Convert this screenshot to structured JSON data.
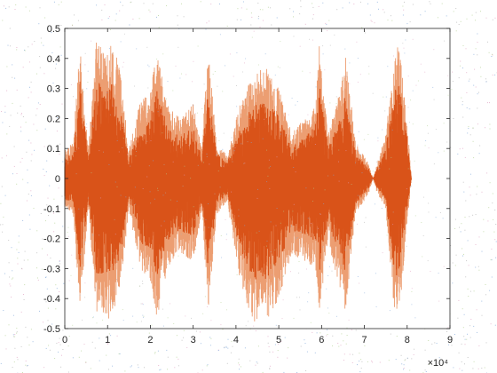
{
  "chart_data": {
    "type": "line",
    "title": "",
    "xlabel": "",
    "ylabel": "",
    "xlim": [
      0,
      9
    ],
    "ylim": [
      -0.5,
      0.5
    ],
    "x_ticks": [
      0,
      1,
      2,
      3,
      4,
      5,
      6,
      7,
      8,
      9
    ],
    "y_ticks": [
      -0.5,
      -0.4,
      -0.3,
      -0.2,
      -0.1,
      0,
      0.1,
      0.2,
      0.3,
      0.4,
      0.5
    ],
    "x_tick_labels": [
      "0",
      "1",
      "2",
      "3",
      "4",
      "5",
      "6",
      "7",
      "8",
      "9"
    ],
    "y_tick_labels": [
      "-0.5",
      "-0.4",
      "-0.3",
      "-0.2",
      "-0.1",
      "0",
      "0.1",
      "0.2",
      "0.3",
      "0.4",
      "0.5"
    ],
    "x_exponent_label": "×10⁴",
    "grid": false,
    "box": true,
    "colors": {
      "series_dark": "#d95319",
      "series_light": "#ec9e72",
      "axes": "#262626",
      "noise": [
        "#b0b0b0",
        "#7fa7d8",
        "#e0a0c0",
        "#b0d090"
      ]
    },
    "series": [
      {
        "type": "waveform",
        "amplitude_envelope": [
          {
            "x": 0.0,
            "top": 0.1,
            "bottom": -0.1
          },
          {
            "x": 0.2,
            "top": 0.12,
            "bottom": -0.12
          },
          {
            "x": 0.35,
            "top": 0.47,
            "bottom": -0.45
          },
          {
            "x": 0.55,
            "top": 0.1,
            "bottom": -0.1
          },
          {
            "x": 0.75,
            "top": 0.48,
            "bottom": -0.48
          },
          {
            "x": 0.95,
            "top": 0.4,
            "bottom": -0.48
          },
          {
            "x": 1.1,
            "top": 0.47,
            "bottom": -0.47
          },
          {
            "x": 1.3,
            "top": 0.35,
            "bottom": -0.37
          },
          {
            "x": 1.5,
            "top": 0.1,
            "bottom": -0.1
          },
          {
            "x": 1.75,
            "top": 0.25,
            "bottom": -0.3
          },
          {
            "x": 2.0,
            "top": 0.3,
            "bottom": -0.35
          },
          {
            "x": 2.15,
            "top": 0.42,
            "bottom": -0.47
          },
          {
            "x": 2.4,
            "top": 0.25,
            "bottom": -0.3
          },
          {
            "x": 2.7,
            "top": 0.2,
            "bottom": -0.25
          },
          {
            "x": 3.0,
            "top": 0.25,
            "bottom": -0.28
          },
          {
            "x": 3.2,
            "top": 0.1,
            "bottom": -0.12
          },
          {
            "x": 3.35,
            "top": 0.45,
            "bottom": -0.45
          },
          {
            "x": 3.55,
            "top": 0.12,
            "bottom": -0.12
          },
          {
            "x": 3.8,
            "top": 0.08,
            "bottom": -0.08
          },
          {
            "x": 4.1,
            "top": 0.25,
            "bottom": -0.35
          },
          {
            "x": 4.4,
            "top": 0.35,
            "bottom": -0.48
          },
          {
            "x": 4.7,
            "top": 0.37,
            "bottom": -0.48
          },
          {
            "x": 5.0,
            "top": 0.3,
            "bottom": -0.4
          },
          {
            "x": 5.3,
            "top": 0.15,
            "bottom": -0.25
          },
          {
            "x": 5.6,
            "top": 0.2,
            "bottom": -0.28
          },
          {
            "x": 5.85,
            "top": 0.25,
            "bottom": -0.3
          },
          {
            "x": 5.95,
            "top": 0.45,
            "bottom": -0.45
          },
          {
            "x": 6.15,
            "top": 0.15,
            "bottom": -0.2
          },
          {
            "x": 6.45,
            "top": 0.3,
            "bottom": -0.4
          },
          {
            "x": 6.55,
            "top": 0.42,
            "bottom": -0.45
          },
          {
            "x": 6.8,
            "top": 0.12,
            "bottom": -0.12
          },
          {
            "x": 7.1,
            "top": 0.05,
            "bottom": -0.05
          },
          {
            "x": 7.2,
            "top": 0.0,
            "bottom": 0.0
          },
          {
            "x": 7.3,
            "top": 0.05,
            "bottom": -0.05
          },
          {
            "x": 7.5,
            "top": 0.15,
            "bottom": -0.1
          },
          {
            "x": 7.7,
            "top": 0.4,
            "bottom": -0.45
          },
          {
            "x": 7.8,
            "top": 0.48,
            "bottom": -0.48
          },
          {
            "x": 8.0,
            "top": 0.2,
            "bottom": -0.15
          },
          {
            "x": 8.1,
            "top": 0.0,
            "bottom": 0.0
          }
        ]
      }
    ]
  }
}
